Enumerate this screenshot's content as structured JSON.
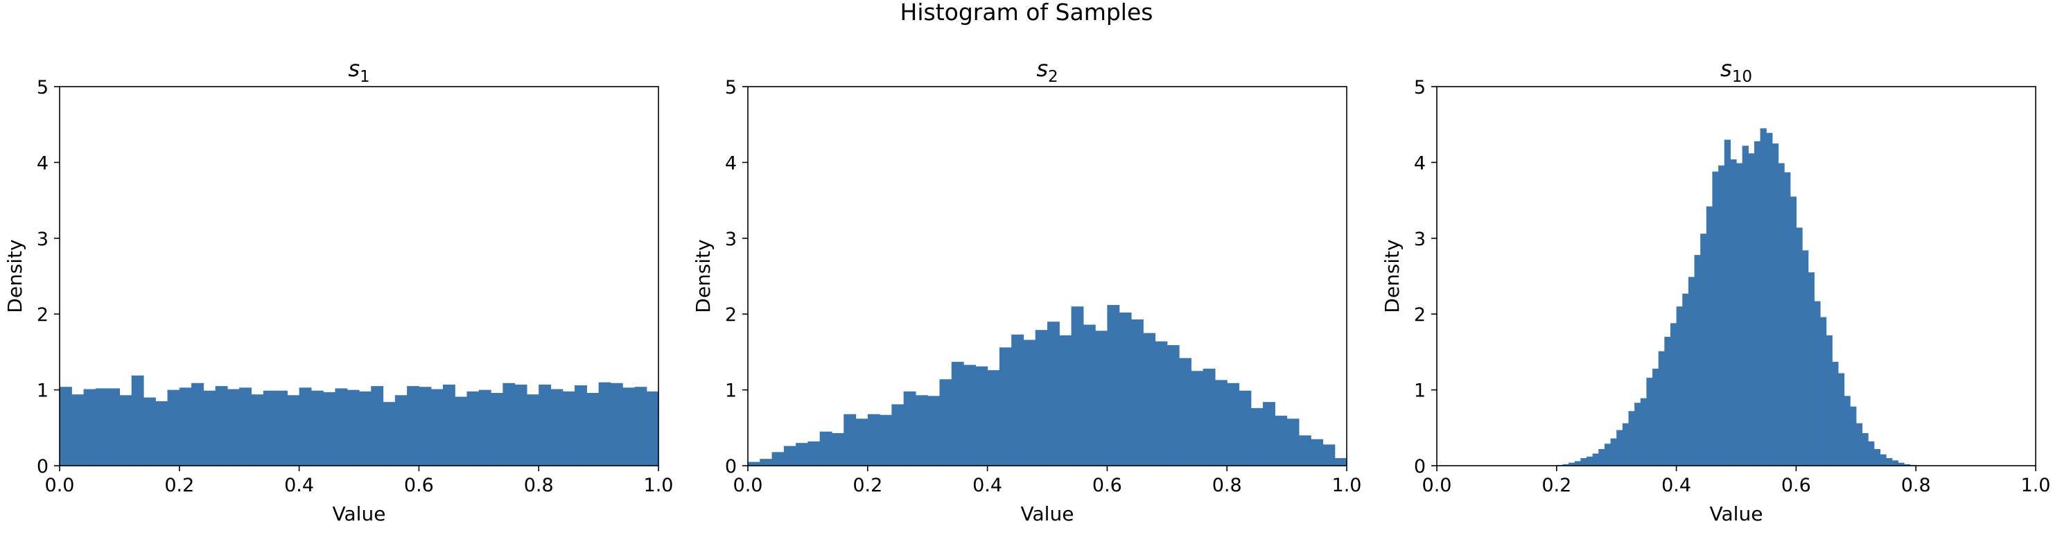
{
  "figure": {
    "suptitle": "Histogram of Samples"
  },
  "colors": {
    "bar": "#3a75ae",
    "axis": "#000000",
    "background": "#ffffff"
  },
  "chart_data": [
    {
      "type": "bar",
      "title": "s",
      "title_sub": "1",
      "xlabel": "Value",
      "ylabel": "Density",
      "xlim": [
        0,
        1
      ],
      "ylim": [
        0,
        5
      ],
      "xticks": [
        "0.0",
        "0.2",
        "0.4",
        "0.6",
        "0.8",
        "1.0"
      ],
      "yticks": [
        "0",
        "1",
        "2",
        "3",
        "4",
        "5"
      ],
      "grid": false,
      "bins": {
        "start": 0,
        "end": 1,
        "count": 50
      },
      "values": [
        1.04,
        0.94,
        1.01,
        1.02,
        1.02,
        0.93,
        1.19,
        0.9,
        0.85,
        1.0,
        1.03,
        1.09,
        0.99,
        1.05,
        1.01,
        1.03,
        0.94,
        0.99,
        0.99,
        0.93,
        1.03,
        0.99,
        0.97,
        1.02,
        1.0,
        0.98,
        1.05,
        0.84,
        0.93,
        1.05,
        1.04,
        1.01,
        1.07,
        0.91,
        0.98,
        1.0,
        0.96,
        1.09,
        1.07,
        0.94,
        1.07,
        1.01,
        0.98,
        1.06,
        0.96,
        1.1,
        1.09,
        1.03,
        1.04,
        0.98
      ]
    },
    {
      "type": "bar",
      "title": "s",
      "title_sub": "2",
      "xlabel": "Value",
      "ylabel": "Density",
      "xlim": [
        0,
        1
      ],
      "ylim": [
        0,
        5
      ],
      "xticks": [
        "0.0",
        "0.2",
        "0.4",
        "0.6",
        "0.8",
        "1.0"
      ],
      "yticks": [
        "0",
        "1",
        "2",
        "3",
        "4",
        "5"
      ],
      "grid": false,
      "bins": {
        "start": 0,
        "end": 1,
        "count": 50
      },
      "values": [
        0.05,
        0.09,
        0.18,
        0.26,
        0.3,
        0.32,
        0.45,
        0.43,
        0.68,
        0.62,
        0.68,
        0.67,
        0.81,
        0.98,
        0.93,
        0.92,
        1.14,
        1.37,
        1.33,
        1.31,
        1.26,
        1.56,
        1.73,
        1.66,
        1.79,
        1.9,
        1.72,
        2.1,
        1.86,
        1.78,
        2.12,
        2.02,
        1.93,
        1.75,
        1.64,
        1.59,
        1.42,
        1.25,
        1.28,
        1.13,
        1.09,
        0.99,
        0.76,
        0.84,
        0.66,
        0.62,
        0.4,
        0.35,
        0.28,
        0.1
      ]
    },
    {
      "type": "bar",
      "title": "s",
      "title_sub": "10",
      "xlabel": "Value",
      "ylabel": "Density",
      "xlim": [
        0,
        1
      ],
      "ylim": [
        0,
        5
      ],
      "xticks": [
        "0.0",
        "0.2",
        "0.4",
        "0.6",
        "0.8",
        "1.0"
      ],
      "yticks": [
        "0",
        "1",
        "2",
        "3",
        "4",
        "5"
      ],
      "grid": false,
      "bins": {
        "start": 0.2,
        "end": 0.8,
        "count": 60
      },
      "values": [
        0.01,
        0.02,
        0.04,
        0.06,
        0.1,
        0.12,
        0.16,
        0.22,
        0.29,
        0.36,
        0.47,
        0.56,
        0.72,
        0.83,
        0.89,
        1.16,
        1.28,
        1.51,
        1.7,
        1.88,
        2.1,
        2.27,
        2.49,
        2.78,
        3.06,
        3.42,
        3.88,
        3.96,
        4.3,
        4.04,
        3.99,
        4.22,
        4.12,
        4.28,
        4.45,
        4.39,
        4.25,
        3.99,
        3.87,
        3.55,
        3.14,
        2.84,
        2.55,
        2.17,
        1.96,
        1.72,
        1.37,
        1.22,
        0.92,
        0.78,
        0.56,
        0.43,
        0.32,
        0.22,
        0.15,
        0.1,
        0.07,
        0.04,
        0.02,
        0.01
      ]
    }
  ]
}
